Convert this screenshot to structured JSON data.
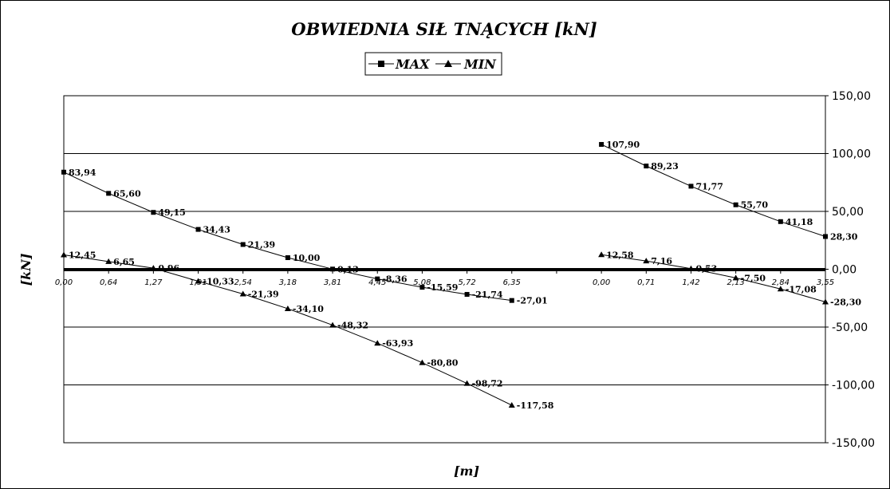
{
  "chart_data": {
    "type": "line",
    "title": "OBWIEDNIA SIŁ TNĄCYCH [kN]",
    "xlabel": "[m]",
    "ylabel": "[kN]",
    "ylim": [
      -150,
      150
    ],
    "yticks": [
      "150,00",
      "100,00",
      "50,00",
      "0,00",
      "-50,00",
      "-100,00",
      "-150,00"
    ],
    "ytick_values": [
      150,
      100,
      50,
      0,
      -50,
      -100,
      -150
    ],
    "grid": true,
    "legend_position": "top-center",
    "legend": [
      "MAX",
      "MIN"
    ],
    "spans": [
      {
        "x_labels": [
          "0,00",
          "0,64",
          "1,27",
          "1,91",
          "2,54",
          "3,18",
          "3,81",
          "4,45",
          "5,08",
          "5,72",
          "6,35"
        ],
        "max_values": [
          83.94,
          65.6,
          49.15,
          34.43,
          21.39,
          10.0,
          0.13,
          -8.36,
          -15.59,
          -21.74,
          -27.01
        ],
        "max_labels": [
          "83,94",
          "65,60",
          "49,15",
          "34,43",
          "21,39",
          "10,00",
          "0,13",
          "-8,36",
          "-15,59",
          "-21,74",
          "-27,01"
        ],
        "min_values": [
          12.45,
          6.65,
          0.96,
          -10.33,
          -21.39,
          -34.1,
          -48.32,
          -63.93,
          -80.8,
          -98.72,
          -117.58
        ],
        "min_labels": [
          "12,45",
          "6,65",
          "0,96",
          "-10,33",
          "-21,39",
          "-34,10",
          "-48,32",
          "-63,93",
          "-80,80",
          "-98,72",
          "-117,58"
        ]
      },
      {
        "x_labels": [
          "0,00",
          "0,71",
          "1,42",
          "2,13",
          "2,84",
          "3,55"
        ],
        "max_values": [
          107.9,
          89.23,
          71.77,
          55.7,
          41.18,
          28.3
        ],
        "max_labels": [
          "107,90",
          "89,23",
          "71,77",
          "55,70",
          "41,18",
          "28,30"
        ],
        "min_values": [
          12.58,
          7.16,
          0.53,
          -7.5,
          -17.08,
          -28.3
        ],
        "min_labels": [
          "12,58",
          "7,16",
          "0,53",
          "-7,50",
          "-17,08",
          "-28,30"
        ]
      }
    ],
    "colors": {
      "line": "#000000",
      "grid": "#000000",
      "background": "#ffffff"
    }
  }
}
